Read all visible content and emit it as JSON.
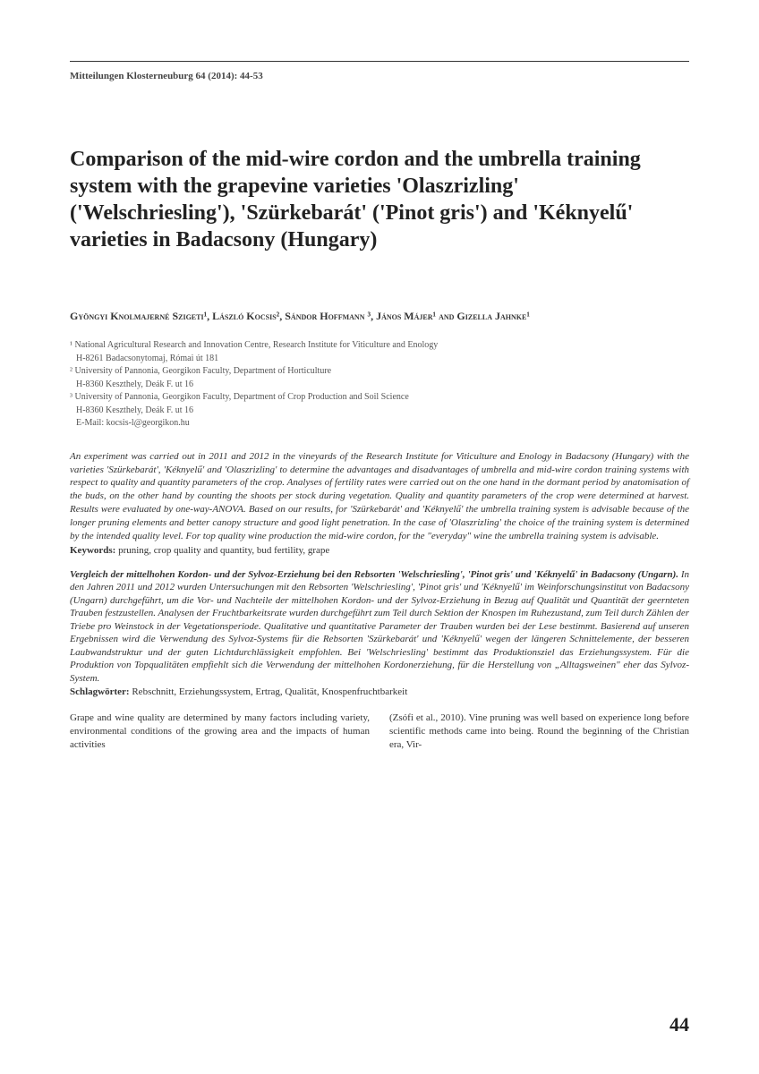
{
  "journal_header": "Mitteilungen Klosterneuburg 64 (2014): 44-53",
  "title": "Comparison of the mid-wire cordon and the umbrella training system with the grapevine varieties 'Olaszrizling' ('Welschriesling'), 'Szürkebarát' ('Pinot gris') and 'Kéknyelű' varieties in Badacsony (Hungary)",
  "authors_html": "Gyöngyi Knolmajerné Szigeti¹, László Kocsis², Sándor Hoffmann ³, János Májer¹ and Gizella Jahnke¹",
  "affiliations": [
    {
      "num": "¹",
      "name": "National Agricultural Research and Innovation Centre, Research Institute for Viticulture and Enology",
      "addr": "H-8261 Badacsonytomaj, Római út 181"
    },
    {
      "num": "²",
      "name": "University of Pannonia, Georgikon Faculty, Department of Horticulture",
      "addr": "H-8360 Keszthely, Deák F. ut 16"
    },
    {
      "num": "³",
      "name": "University of Pannonia, Georgikon Faculty, Department of Crop Production and Soil Science",
      "addr": "H-8360 Keszthely, Deák F. ut 16"
    }
  ],
  "email_line": "E-Mail: kocsis-l@georgikon.hu",
  "abstract_en": "An experiment was carried out in 2011 and 2012 in the vineyards of the Research Institute for Viticulture and Enology in Badacsony (Hungary) with the varieties 'Szürkebarát', 'Kéknyelű' and 'Olaszrizling' to determine the advantages and disadvantages of umbrella and mid-wire cordon training systems with respect to quality and quantity parameters of the crop. Analyses of fertility rates were carried out on the one hand in the dormant period by anatomisation of the buds, on the other hand by counting the shoots per stock during vegetation. Quality and quantity parameters of the crop were determined at harvest. Results were evaluated by one-way-ANOVA. Based on our results, for 'Szürkebarát' and 'Kéknyelű' the umbrella training system is advisable because of the longer pruning elements and better canopy structure and good light penetration. In the case of 'Olaszrizling' the choice of the training system is determined by the intended quality level. For top quality wine production the mid-wire cordon, for the \"everyday\" wine the umbrella training system is advisable.",
  "keywords_label": "Keywords:",
  "keywords": "pruning, crop quality and quantity, bud fertility, grape",
  "abstract_de_title": "Vergleich der mittelhohen Kordon- und der Sylvoz-Erziehung bei den Rebsorten 'Welschriesling', 'Pinot gris' und 'Kéknyelű' in Badacsony (Ungarn).",
  "abstract_de": "In den Jahren 2011 und 2012 wurden Untersuchungen mit den Rebsorten 'Welschriesling', 'Pinot gris' und 'Kéknyelű' im Weinforschungsinstitut von Badacsony (Ungarn) durchgeführt, um die Vor- und Nachteile der mittelhohen Kordon- und der Sylvoz-Erziehung in Bezug auf Qualität und Quantität der geernteten Trauben festzustellen. Analysen der Fruchtbarkeitsrate wurden durchgeführt zum Teil durch Sektion der Knospen im Ruhezustand, zum Teil durch Zählen der Triebe pro Weinstock in der Vegetationsperiode. Qualitative und quantitative Parameter der Trauben wurden bei der Lese bestimmt. Basierend auf unseren Ergebnissen wird die Verwendung des Sylvoz-Systems für die Rebsorten 'Szürkebarát' und 'Kéknyelű' wegen der längeren Schnittelemente, der besseren Laubwandstruktur und der guten Lichtdurchlässigkeit empfohlen. Bei 'Welschriesling' bestimmt das Produktionsziel das Erziehungssystem. Für die Produktion von Topqualitäten empfiehlt sich die Verwendung der mittelhohen Kordonerziehung, für die Herstellung von „Alltagsweinen\" eher das Sylvoz-System.",
  "schlagworter_label": "Schlagwörter:",
  "schlagworter": "Rebschnitt, Erziehungssystem, Ertrag, Qualität, Knospenfruchtbarkeit",
  "body_col1": "Grape and wine quality are determined by many factors including variety, environmental conditions of the growing area and the impacts of human activities",
  "body_col2": "(Zsófi et al., 2010). Vine pruning was well based on experience long before scientific methods came into being. Round the beginning of the Christian era, Vir-",
  "page_number": "44",
  "colors": {
    "text": "#333333",
    "rule": "#333333",
    "background": "#ffffff"
  },
  "typography": {
    "title_fontsize": 24,
    "body_fontsize": 11,
    "affil_fontsize": 10,
    "pagenum_fontsize": 22,
    "font_family": "Georgia, serif"
  }
}
